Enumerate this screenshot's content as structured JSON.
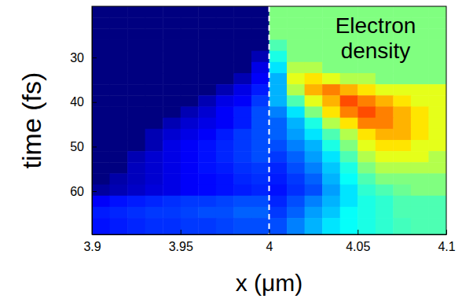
{
  "chart_data": {
    "type": "heatmap",
    "annotation": "Electron density",
    "x_label": "x (μm)",
    "y_label": "time (fs)",
    "xlim": [
      3.9,
      4.1
    ],
    "ylim": [
      18.5,
      69.7
    ],
    "xticks": [
      3.9,
      3.95,
      4,
      4.05,
      4.1
    ],
    "yticks": [
      30,
      40,
      50,
      60
    ],
    "zlim": [
      0,
      1
    ],
    "x_edges": [
      3.9,
      3.91,
      3.92,
      3.93,
      3.94,
      3.95,
      3.96,
      3.97,
      3.98,
      3.99,
      4.0,
      4.01,
      4.02,
      4.03,
      4.04,
      4.05,
      4.06,
      4.07,
      4.08,
      4.09,
      4.1
    ],
    "y_edges": [
      18.5,
      21,
      23.5,
      26,
      28.5,
      31,
      33.5,
      36,
      38.5,
      41,
      43.5,
      46,
      48.5,
      51,
      53.5,
      56,
      58.5,
      61,
      63.5,
      66,
      69.7
    ],
    "values": [
      [
        0,
        0,
        0,
        0,
        0,
        0,
        0,
        0,
        0,
        0,
        0.5,
        0.5,
        0.5,
        0.5,
        0.5,
        0.5,
        0.5,
        0.5,
        0.5,
        0.5
      ],
      [
        0,
        0,
        0,
        0,
        0,
        0,
        0,
        0,
        0,
        0,
        0.5,
        0.5,
        0.5,
        0.5,
        0.5,
        0.5,
        0.5,
        0.5,
        0.5,
        0.5
      ],
      [
        0,
        0,
        0,
        0,
        0,
        0,
        0,
        0,
        0,
        0,
        0.5,
        0.5,
        0.5,
        0.5,
        0.5,
        0.5,
        0.5,
        0.5,
        0.5,
        0.5
      ],
      [
        0,
        0,
        0,
        0,
        0,
        0,
        0,
        0,
        0,
        0,
        0.45,
        0.5,
        0.5,
        0.5,
        0.5,
        0.5,
        0.5,
        0.5,
        0.5,
        0.5
      ],
      [
        0,
        0,
        0,
        0,
        0,
        0,
        0,
        0,
        0,
        0.05,
        0.4,
        0.5,
        0.5,
        0.5,
        0.5,
        0.5,
        0.5,
        0.5,
        0.5,
        0.5
      ],
      [
        0,
        0,
        0,
        0,
        0,
        0,
        0,
        0,
        0,
        0.1,
        0.35,
        0.55,
        0.55,
        0.5,
        0.5,
        0.5,
        0.5,
        0.5,
        0.5,
        0.5
      ],
      [
        0,
        0,
        0,
        0,
        0,
        0,
        0,
        0,
        0.05,
        0.12,
        0.3,
        0.6,
        0.65,
        0.6,
        0.55,
        0.55,
        0.5,
        0.5,
        0.5,
        0.5
      ],
      [
        0,
        0,
        0,
        0,
        0,
        0,
        0,
        0.05,
        0.1,
        0.15,
        0.3,
        0.55,
        0.7,
        0.75,
        0.7,
        0.65,
        0.6,
        0.6,
        0.6,
        0.6
      ],
      [
        0,
        0,
        0,
        0,
        0,
        0,
        0.05,
        0.1,
        0.12,
        0.18,
        0.3,
        0.45,
        0.6,
        0.7,
        0.8,
        0.75,
        0.7,
        0.65,
        0.6,
        0.6
      ],
      [
        0,
        0,
        0,
        0,
        0,
        0.05,
        0.08,
        0.12,
        0.15,
        0.2,
        0.25,
        0.35,
        0.5,
        0.65,
        0.75,
        0.8,
        0.75,
        0.7,
        0.65,
        0.6
      ],
      [
        0,
        0,
        0,
        0,
        0.05,
        0.08,
        0.1,
        0.12,
        0.15,
        0.2,
        0.22,
        0.3,
        0.4,
        0.55,
        0.65,
        0.75,
        0.75,
        0.7,
        0.65,
        0.6
      ],
      [
        0,
        0,
        0,
        0.05,
        0.08,
        0.1,
        0.12,
        0.15,
        0.18,
        0.2,
        0.22,
        0.28,
        0.35,
        0.45,
        0.55,
        0.65,
        0.7,
        0.7,
        0.65,
        0.6
      ],
      [
        0,
        0,
        0,
        0.05,
        0.1,
        0.12,
        0.14,
        0.16,
        0.18,
        0.2,
        0.2,
        0.25,
        0.3,
        0.4,
        0.5,
        0.6,
        0.65,
        0.65,
        0.6,
        0.6
      ],
      [
        0,
        0,
        0.05,
        0.08,
        0.1,
        0.12,
        0.14,
        0.16,
        0.18,
        0.2,
        0.18,
        0.22,
        0.28,
        0.35,
        0.45,
        0.55,
        0.6,
        0.6,
        0.6,
        0.55
      ],
      [
        0,
        0,
        0.06,
        0.08,
        0.1,
        0.12,
        0.14,
        0.15,
        0.17,
        0.18,
        0.16,
        0.2,
        0.25,
        0.32,
        0.4,
        0.5,
        0.55,
        0.55,
        0.55,
        0.55
      ],
      [
        0,
        0.04,
        0.06,
        0.08,
        0.1,
        0.12,
        0.13,
        0.14,
        0.16,
        0.17,
        0.15,
        0.18,
        0.22,
        0.3,
        0.38,
        0.45,
        0.5,
        0.5,
        0.5,
        0.5
      ],
      [
        0.03,
        0.05,
        0.07,
        0.09,
        0.1,
        0.12,
        0.13,
        0.14,
        0.15,
        0.16,
        0.14,
        0.17,
        0.2,
        0.28,
        0.35,
        0.42,
        0.45,
        0.48,
        0.5,
        0.5
      ],
      [
        0.12,
        0.14,
        0.15,
        0.16,
        0.17,
        0.18,
        0.18,
        0.19,
        0.2,
        0.2,
        0.16,
        0.2,
        0.25,
        0.3,
        0.35,
        0.4,
        0.42,
        0.45,
        0.45,
        0.45
      ],
      [
        0.15,
        0.16,
        0.17,
        0.18,
        0.18,
        0.19,
        0.2,
        0.2,
        0.22,
        0.22,
        0.18,
        0.22,
        0.28,
        0.32,
        0.38,
        0.4,
        0.42,
        0.45,
        0.45,
        0.45
      ],
      [
        0.14,
        0.15,
        0.16,
        0.17,
        0.17,
        0.18,
        0.18,
        0.19,
        0.2,
        0.2,
        0.2,
        0.25,
        0.3,
        0.35,
        0.38,
        0.4,
        0.42,
        0.44,
        0.45,
        0.45
      ]
    ],
    "reference_line": {
      "x": 4,
      "line_style": "dashed",
      "color": "#ffffff"
    }
  }
}
